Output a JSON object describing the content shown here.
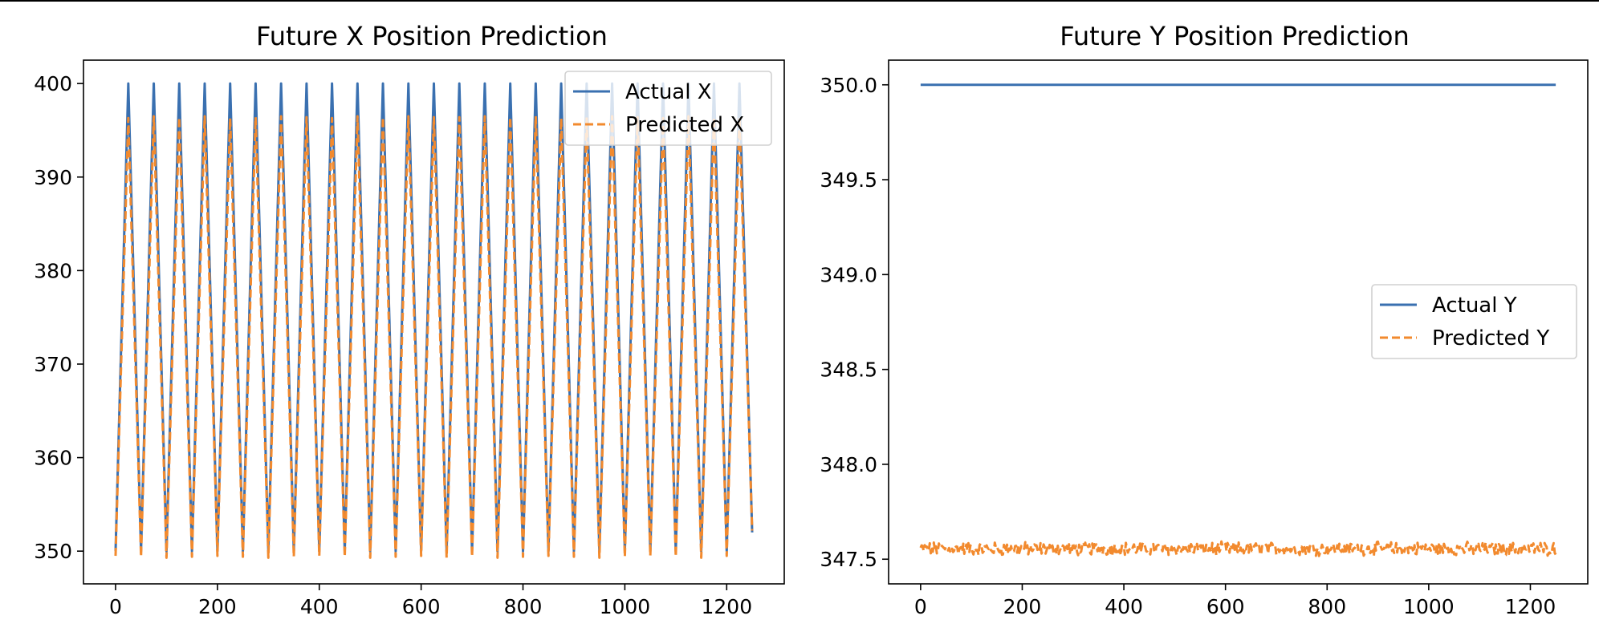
{
  "chart_data": [
    {
      "type": "line",
      "title": "Future X Position Prediction",
      "xlabel": "",
      "ylabel": "",
      "xlim": [
        -63,
        1313
      ],
      "ylim": [
        346.5,
        402.5
      ],
      "xticks": [
        0,
        200,
        400,
        600,
        800,
        1000,
        1200
      ],
      "yticks": [
        350,
        360,
        370,
        380,
        390,
        400
      ],
      "xtick_labels": [
        "0",
        "200",
        "400",
        "600",
        "800",
        "1000",
        "1200"
      ],
      "ytick_labels": [
        "350",
        "360",
        "370",
        "380",
        "390",
        "400"
      ],
      "grid": false,
      "legend_position": "upper-right",
      "pattern": "triangle wave between 350 and 400, period 50, peaks at x = 25 + 50k, last point at x = 1250",
      "series": [
        {
          "name": "Actual X",
          "color": "#3a70b0",
          "style": "solid",
          "x": [
            0,
            25,
            50,
            75,
            100,
            125,
            150,
            175,
            200,
            225,
            250,
            275,
            300,
            325,
            350,
            375,
            400,
            425,
            450,
            475,
            500,
            525,
            550,
            575,
            600,
            625,
            650,
            675,
            700,
            725,
            750,
            775,
            800,
            825,
            850,
            875,
            900,
            925,
            950,
            975,
            1000,
            1025,
            1050,
            1075,
            1100,
            1125,
            1150,
            1175,
            1200,
            1225,
            1250
          ],
          "y": [
            350,
            400,
            350,
            400,
            350,
            400,
            350,
            400,
            350,
            400,
            350,
            400,
            350,
            400,
            350,
            400,
            350,
            400,
            350,
            400,
            350,
            400,
            350,
            400,
            350,
            400,
            350,
            400,
            350,
            400,
            350,
            400,
            350,
            400,
            350,
            400,
            350,
            400,
            350,
            400,
            350,
            400,
            350,
            400,
            350,
            400,
            350,
            400,
            350,
            400,
            352
          ]
        },
        {
          "name": "Predicted X",
          "color": "#f28a2e",
          "style": "dashed",
          "x": [
            0,
            25,
            50,
            75,
            100,
            125,
            150,
            175,
            200,
            225,
            250,
            275,
            300,
            325,
            350,
            375,
            400,
            425,
            450,
            475,
            500,
            525,
            550,
            575,
            600,
            625,
            650,
            675,
            700,
            725,
            750,
            775,
            800,
            825,
            850,
            875,
            900,
            925,
            950,
            975,
            1000,
            1025,
            1050,
            1075,
            1100,
            1125,
            1150,
            1175,
            1200,
            1225,
            1250
          ],
          "y": [
            349.5,
            396.3,
            349.4,
            396.5,
            349.3,
            396.4,
            349.4,
            396.5,
            349.5,
            396.3,
            349.4,
            396.4,
            349.3,
            396.5,
            349.4,
            396.4,
            349.5,
            396.3,
            349.4,
            396.5,
            349.3,
            396.4,
            349.4,
            396.5,
            349.5,
            396.4,
            349.3,
            396.4,
            349.4,
            396.5,
            349.3,
            396.4,
            349.4,
            396.5,
            349.5,
            396.3,
            349.4,
            396.4,
            349.3,
            396.5,
            349.4,
            396.4,
            349.5,
            396.3,
            349.4,
            396.5,
            349.3,
            396.4,
            349.5,
            396.4,
            352.2
          ]
        }
      ]
    },
    {
      "type": "line",
      "title": "Future Y Position Prediction",
      "xlabel": "",
      "ylabel": "",
      "xlim": [
        -63,
        1313
      ],
      "ylim": [
        347.37,
        350.13
      ],
      "xticks": [
        0,
        200,
        400,
        600,
        800,
        1000,
        1200
      ],
      "yticks": [
        347.5,
        348.0,
        348.5,
        349.0,
        349.5,
        350.0
      ],
      "xtick_labels": [
        "0",
        "200",
        "400",
        "600",
        "800",
        "1000",
        "1200"
      ],
      "ytick_labels": [
        "347.5",
        "348.0",
        "348.5",
        "349.0",
        "349.5",
        "350.0"
      ],
      "grid": false,
      "legend_position": "center-right",
      "series": [
        {
          "name": "Actual Y",
          "color": "#3a70b0",
          "style": "solid",
          "x": [
            0,
            1250
          ],
          "y": [
            350.0,
            350.0
          ]
        },
        {
          "name": "Predicted Y",
          "color": "#f28a2e",
          "style": "dashed",
          "x_range": [
            0,
            1250
          ],
          "x_step": 2,
          "y_mean": 347.555,
          "y_min": 347.51,
          "y_max": 347.63,
          "note_shape": "noisy band around 347.555 with amplitude about 0.03"
        }
      ]
    }
  ]
}
